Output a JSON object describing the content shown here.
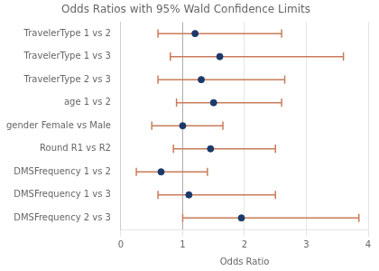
{
  "chart_data": {
    "type": "forest",
    "title": "Odds Ratios with 95% Wald Confidence Limits",
    "xlabel": "Odds Ratio",
    "categories": [
      "TravelerType 1 vs 2",
      "TravelerType 1 vs 3",
      "TravelerType 2 vs 3",
      "age 1 vs 2",
      "gender Female vs Male",
      "Round R1 vs R2",
      "DMSFrequency 1 vs 2",
      "DMSFrequency 1 vs 3",
      "DMSFrequency 2 vs 3"
    ],
    "values": [
      1.2,
      1.6,
      1.3,
      1.5,
      1.0,
      1.45,
      0.65,
      1.1,
      1.95
    ],
    "color": "#1b3a6b",
    "error_bars": {
      "low": [
        0.6,
        0.8,
        0.6,
        0.9,
        0.5,
        0.85,
        0.25,
        0.6,
        1.0
      ],
      "high": [
        2.6,
        3.6,
        2.65,
        2.6,
        1.65,
        2.5,
        1.4,
        2.5,
        3.85
      ],
      "color": "#c97c5a"
    },
    "reference_line": {
      "value": 1,
      "color": "#aaaaaa"
    },
    "xlim": [
      0,
      4
    ],
    "xticks": [
      0,
      1,
      2,
      3,
      4
    ],
    "grid": true
  }
}
